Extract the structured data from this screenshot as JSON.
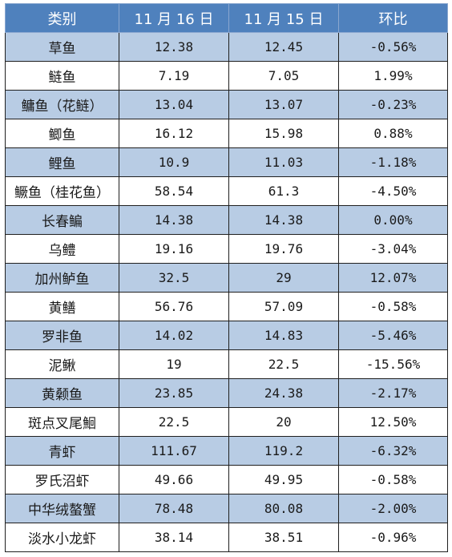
{
  "table": {
    "headers": [
      "类别",
      "11 月 16 日",
      "11 月 15 日",
      "环比"
    ],
    "rows": [
      [
        "草鱼",
        "12.38",
        "12.45",
        "-0.56%"
      ],
      [
        "鲢鱼",
        "7.19",
        "7.05",
        "1.99%"
      ],
      [
        "鳙鱼（花鲢）",
        "13.04",
        "13.07",
        "-0.23%"
      ],
      [
        "鲫鱼",
        "16.12",
        "15.98",
        "0.88%"
      ],
      [
        "鲤鱼",
        "10.9",
        "11.03",
        "-1.18%"
      ],
      [
        "鳜鱼（桂花鱼）",
        "58.54",
        "61.3",
        "-4.50%"
      ],
      [
        "长春鳊",
        "14.38",
        "14.38",
        "0.00%"
      ],
      [
        "乌鳢",
        "19.16",
        "19.76",
        "-3.04%"
      ],
      [
        "加州鲈鱼",
        "32.5",
        "29",
        "12.07%"
      ],
      [
        "黄鳝",
        "56.76",
        "57.09",
        "-0.58%"
      ],
      [
        "罗非鱼",
        "14.02",
        "14.83",
        "-5.46%"
      ],
      [
        "泥鳅",
        "19",
        "22.5",
        "-15.56%"
      ],
      [
        "黄颡鱼",
        "23.85",
        "24.38",
        "-2.17%"
      ],
      [
        "斑点叉尾鮰",
        "22.5",
        "20",
        "12.50%"
      ],
      [
        "青虾",
        "111.67",
        "119.2",
        "-6.32%"
      ],
      [
        "罗氏沼虾",
        "49.66",
        "49.95",
        "-0.58%"
      ],
      [
        "中华绒螯蟹",
        "78.48",
        "80.08",
        "-2.00%"
      ],
      [
        "淡水小龙虾",
        "38.14",
        "38.51",
        "-0.96%"
      ]
    ]
  }
}
